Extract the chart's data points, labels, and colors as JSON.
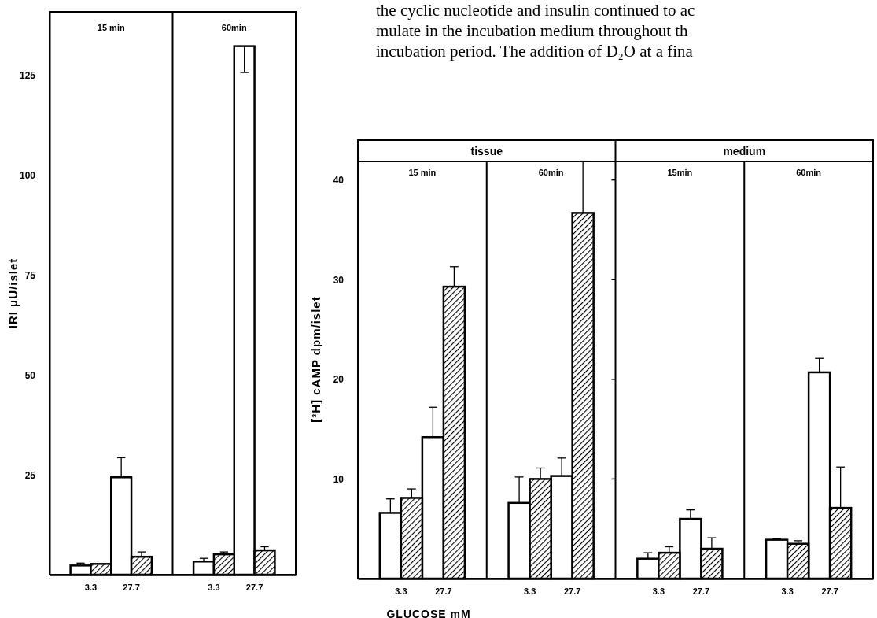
{
  "chart_data": [
    {
      "type": "bar",
      "ylabel": "IRI μU/islet",
      "categories": [
        "3.3",
        "27.7",
        "3.3",
        "27.7"
      ],
      "ylim": [
        0,
        141
      ],
      "yticks": [
        25,
        50,
        75,
        100,
        125
      ],
      "annotations": [
        "15 min",
        "60min"
      ],
      "series": [
        {
          "color": "#ffffff",
          "values": [
            2.3,
            24.4,
            3.3,
            132.4
          ],
          "errors": [
            [
              2.3,
              2.9
            ],
            [
              24.4,
              29.3
            ],
            [
              3.3,
              4.1
            ],
            [
              125.8,
              132.4
            ]
          ]
        },
        {
          "color": "#000000",
          "values": [
            2.7,
            4.5,
            5.1,
            6.1
          ],
          "errors": [
            null,
            [
              4.5,
              5.7
            ],
            [
              5.1,
              5.7
            ],
            [
              6.1,
              7.0
            ]
          ]
        }
      ]
    },
    {
      "type": "bar",
      "ylabel": "[³H] cAMP dpm/islet",
      "xlabel": "GLUCOSE mM",
      "categories": [
        "3.3",
        "27.7",
        "3.3",
        "27.7",
        "3.3",
        "27.7",
        "3.3",
        "27.7"
      ],
      "ylim": [
        0,
        44
      ],
      "yticks": [
        10,
        20,
        30,
        40
      ],
      "annotations": [
        "tissue",
        "medium",
        "15 min",
        "60min",
        "15min",
        "60min"
      ],
      "series": [
        {
          "color": "#ffffff",
          "values": [
            6.6,
            14.2,
            7.6,
            10.3,
            2.0,
            6.0,
            3.9,
            20.7
          ],
          "errors": [
            [
              6.6,
              8.0
            ],
            [
              14.2,
              17.2
            ],
            [
              7.6,
              10.2
            ],
            [
              10.3,
              12.1
            ],
            [
              2.0,
              2.6
            ],
            [
              6.0,
              6.9
            ],
            [
              3.9,
              4.0
            ],
            [
              20.7,
              22.1
            ]
          ]
        },
        {
          "color": "#000000",
          "values": [
            8.1,
            29.3,
            10.0,
            36.7,
            2.6,
            3.0,
            3.5,
            7.1
          ],
          "errors": [
            [
              8.1,
              9.0
            ],
            [
              29.3,
              31.3
            ],
            [
              10.0,
              11.1
            ],
            [
              36.7,
              41.9
            ],
            [
              2.6,
              3.2
            ],
            [
              3.0,
              4.1
            ],
            [
              3.5,
              3.8
            ],
            [
              7.1,
              11.2
            ]
          ]
        }
      ]
    },
    {
      "type": "other",
      "annotations": [
        "the cyclic nucleotide and insulin continued to ac",
        "mulate in the incubation medium throughout th",
        "incubation period. The addition of D₂O at a fina"
      ]
    }
  ]
}
